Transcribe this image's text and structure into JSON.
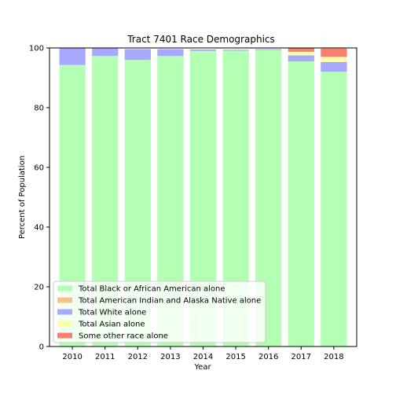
{
  "chart_data": {
    "type": "bar",
    "stacked": true,
    "title": "Tract 7401 Race Demographics",
    "xlabel": "Year",
    "ylabel": "Percent of Population",
    "categories": [
      "2010",
      "2011",
      "2012",
      "2013",
      "2014",
      "2015",
      "2016",
      "2017",
      "2018"
    ],
    "ylim": [
      0,
      100
    ],
    "yticks": [
      0,
      20,
      40,
      60,
      80,
      100
    ],
    "grid": false,
    "legend_position": "lower-left",
    "series": [
      {
        "name": "Total Black or African American alone",
        "color": "#b3ffb3",
        "values": [
          94.3,
          97.3,
          96.0,
          97.3,
          99.0,
          99.1,
          99.3,
          95.5,
          92.0
        ]
      },
      {
        "name": "Total American Indian and Alaska Native alone",
        "color": "#f8c08a",
        "values": [
          0,
          0,
          0,
          0,
          0,
          0,
          0,
          0,
          0
        ]
      },
      {
        "name": "Total White alone",
        "color": "#a8a8ff",
        "values": [
          5.7,
          2.7,
          3.6,
          2.3,
          0.5,
          0.3,
          0.3,
          2.0,
          3.3
        ]
      },
      {
        "name": "Total Asian alone",
        "color": "#fdfcab",
        "values": [
          0,
          0,
          0,
          0,
          0,
          0,
          0,
          1.2,
          1.7
        ]
      },
      {
        "name": "Some other race alone",
        "color": "#f88070",
        "values": [
          0,
          0,
          0,
          0,
          0,
          0,
          0,
          1.2,
          2.8
        ]
      }
    ]
  }
}
